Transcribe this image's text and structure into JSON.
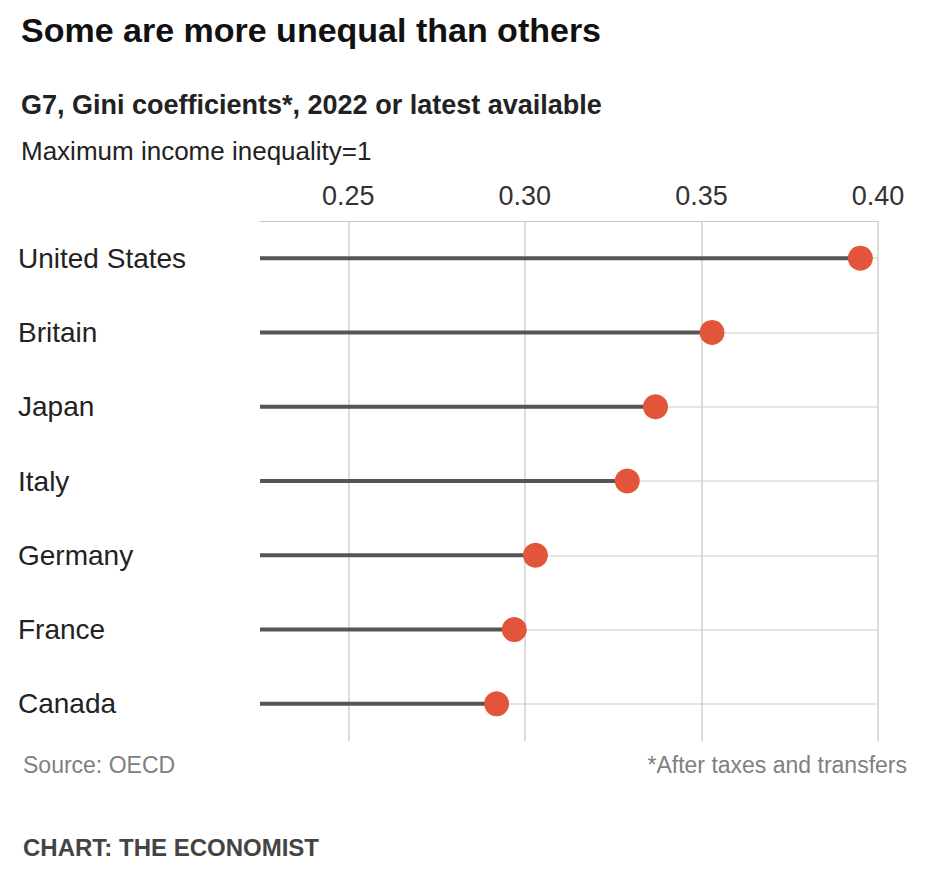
{
  "chart_data": {
    "type": "lollipop",
    "title": "Some are more unequal than others",
    "subtitle": "G7, Gini coefficients*, 2022 or latest available",
    "description": "Maximum income inequality=1",
    "source": "Source: OECD",
    "footnote": "*After taxes and transfers",
    "credit": "CHART: THE ECONOMIST",
    "categories": [
      "United States",
      "Britain",
      "Japan",
      "Italy",
      "Germany",
      "France",
      "Canada"
    ],
    "values": [
      0.395,
      0.353,
      0.337,
      0.329,
      0.303,
      0.297,
      0.292
    ],
    "color": "#e3553a",
    "orientation": "horizontal",
    "grid": true,
    "xlim": [
      0.225,
      0.4
    ],
    "xticks": [
      0.25,
      {
        "value": 0.3,
        "label": "0.30"
      },
      0.35,
      {
        "value": 0.4,
        "label": "0.40"
      }
    ]
  }
}
